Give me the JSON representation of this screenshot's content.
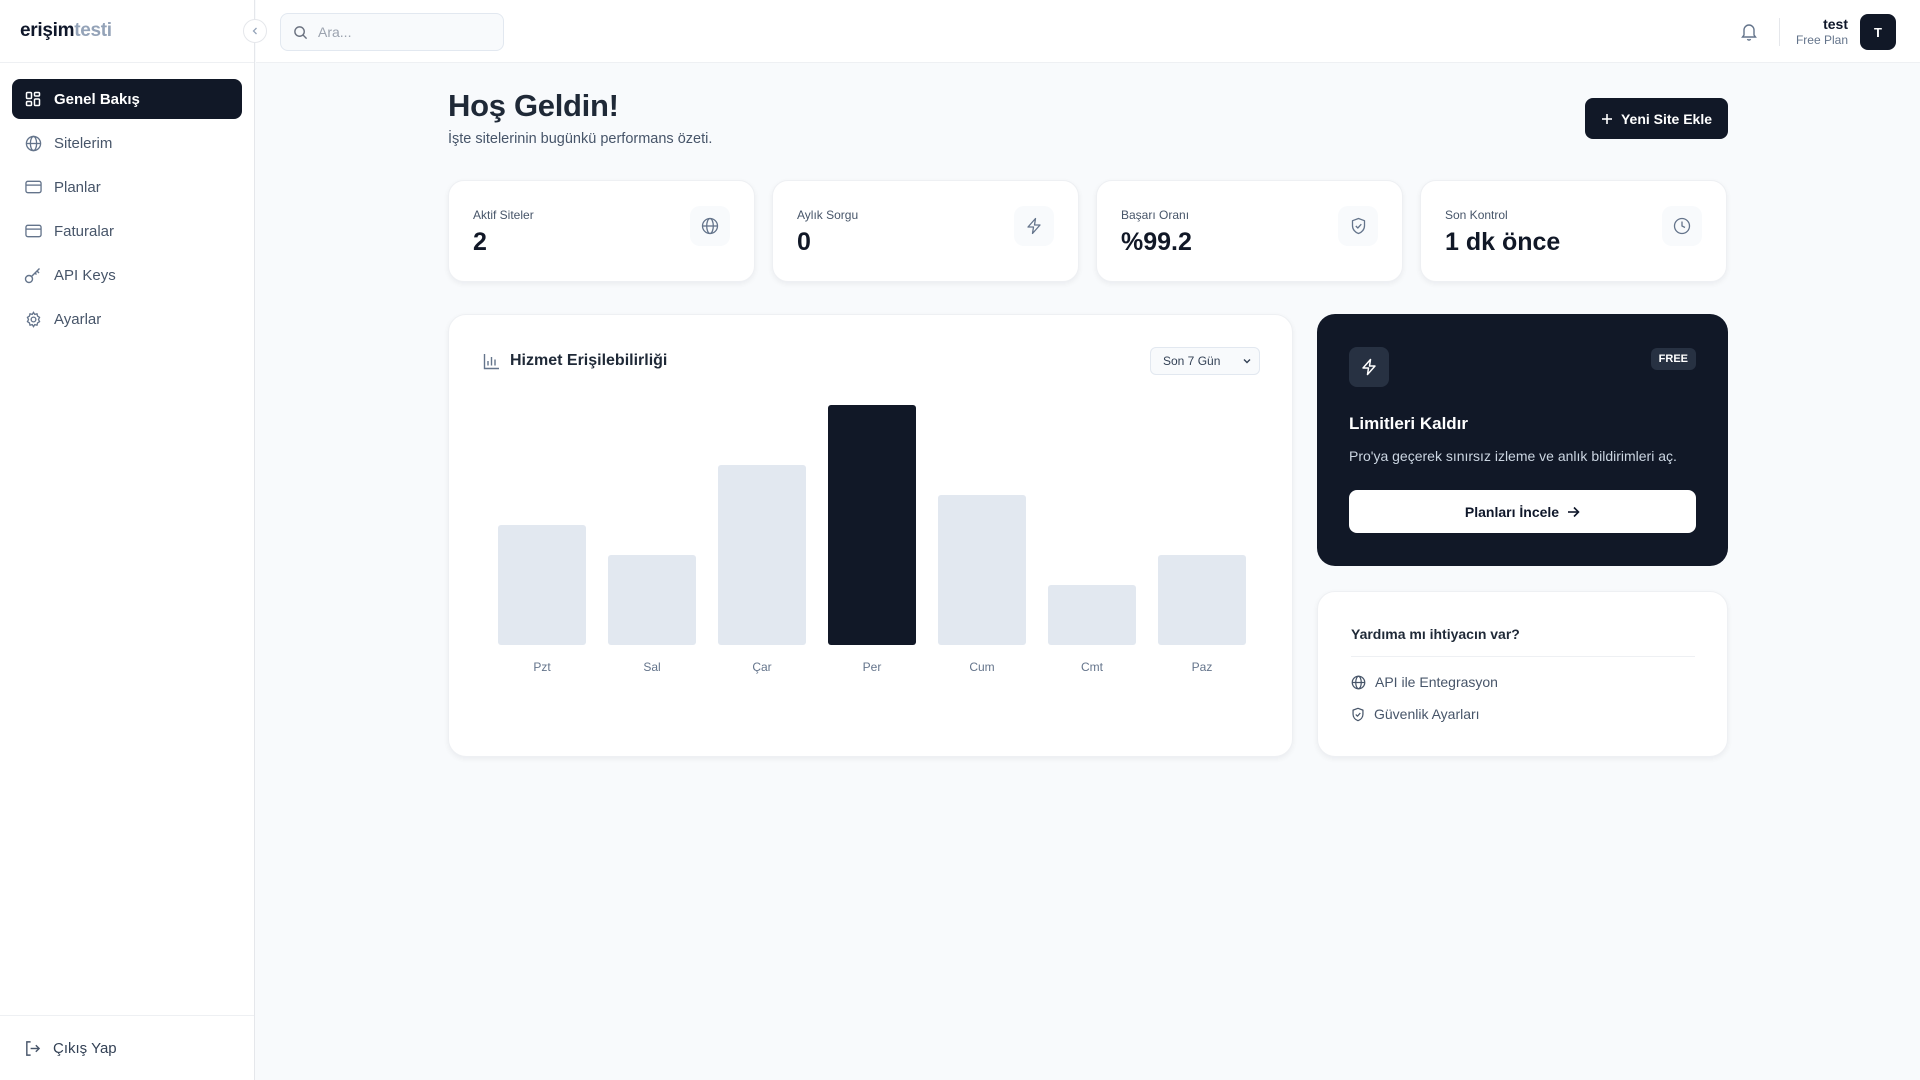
{
  "brand": {
    "bold": "erişim",
    "light": "testi"
  },
  "sidebar": {
    "items": [
      {
        "label": "Genel Bakış",
        "icon": "dashboard-icon",
        "active": true
      },
      {
        "label": "Sitelerim",
        "icon": "globe-icon"
      },
      {
        "label": "Planlar",
        "icon": "card-icon"
      },
      {
        "label": "Faturalar",
        "icon": "card-icon"
      },
      {
        "label": "API Keys",
        "icon": "key-icon"
      },
      {
        "label": "Ayarlar",
        "icon": "gear-icon"
      }
    ],
    "logout_label": "Çıkış Yap"
  },
  "topbar": {
    "search_placeholder": "Ara...",
    "user_name": "test",
    "user_plan": "Free Plan",
    "avatar_initial": "T"
  },
  "main": {
    "title": "Hoş Geldin!",
    "subtitle": "İşte sitelerinin bugünkü performans özeti.",
    "add_button_label": "Yeni Site Ekle"
  },
  "stats": [
    {
      "label": "Aktif Siteler",
      "value": "2",
      "icon": "globe-icon"
    },
    {
      "label": "Aylık Sorgu",
      "value": "0",
      "icon": "lightning-icon"
    },
    {
      "label": "Başarı Oranı",
      "value": "%99.2",
      "icon": "shield-icon"
    },
    {
      "label": "Son Kontrol",
      "value": "1 dk önce",
      "icon": "clock-icon"
    }
  ],
  "chart_card": {
    "title": "Hizmet Erişilebilirliği",
    "range_selected": "Son 7 Gün"
  },
  "chart_data": {
    "type": "bar",
    "categories": [
      "Pzt",
      "Sal",
      "Çar",
      "Per",
      "Cum",
      "Cmt",
      "Paz"
    ],
    "values": [
      40,
      30,
      60,
      80,
      50,
      20,
      30
    ],
    "ylim": [
      0,
      80
    ],
    "highlight_index": 3,
    "colors": {
      "bar": "#e2e8f0",
      "highlight": "#111827"
    }
  },
  "promo": {
    "badge": "FREE",
    "title": "Limitleri Kaldır",
    "description": "Pro'ya geçerek sınırsız izleme ve anlık bildirimleri aç.",
    "button_label": "Planları İncele"
  },
  "help": {
    "title": "Yardıma mı ihtiyacın var?",
    "links": [
      {
        "label": "API ile Entegrasyon",
        "icon": "globe-icon"
      },
      {
        "label": "Güvenlik Ayarları",
        "icon": "shield-icon"
      }
    ]
  },
  "colors": {
    "primary": "#111827",
    "background": "#f8fafc",
    "muted_bar": "#e2e8f0"
  }
}
